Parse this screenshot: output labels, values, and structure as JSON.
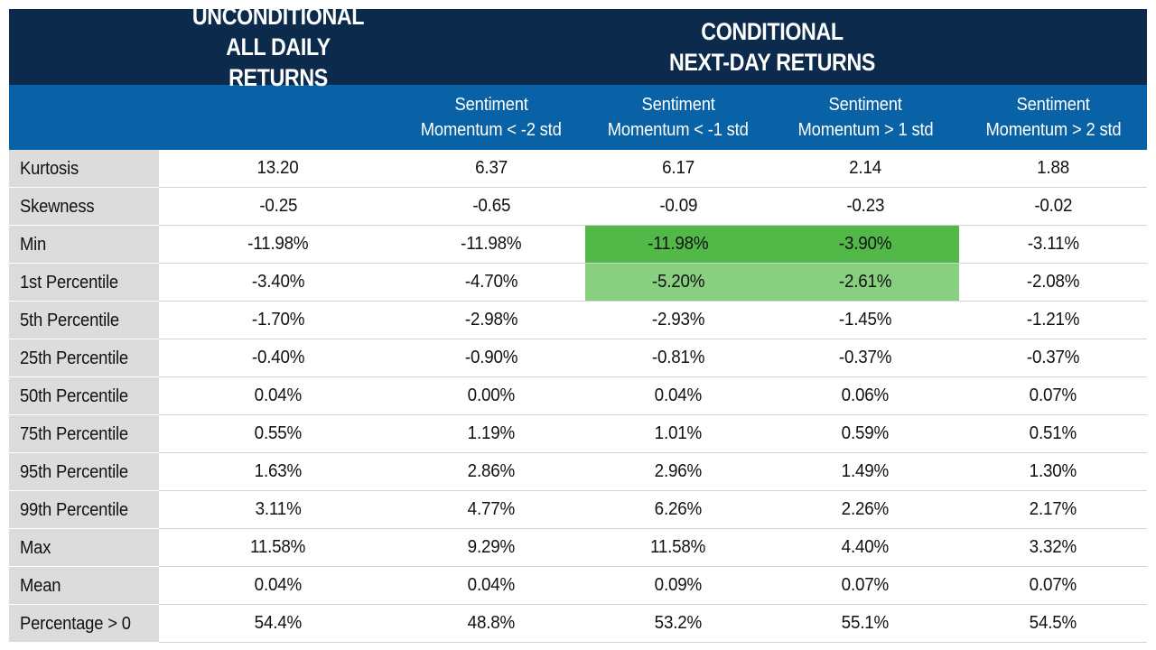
{
  "chart_data": {
    "type": "table",
    "group_headers": [
      {
        "lines": [
          "UNCONDITIONAL",
          "ALL DAILY RETURNS"
        ]
      },
      {
        "lines": [
          "CONDITIONAL",
          "NEXT-DAY RETURNS"
        ]
      }
    ],
    "columns": [
      {
        "lines": [
          "",
          ""
        ]
      },
      {
        "lines": [
          "Sentiment",
          "Momentum < -2 std"
        ]
      },
      {
        "lines": [
          "Sentiment",
          "Momentum < -1 std"
        ]
      },
      {
        "lines": [
          "Sentiment",
          "Momentum > 1 std"
        ]
      },
      {
        "lines": [
          "Sentiment",
          "Momentum > 2 std"
        ]
      }
    ],
    "rows": [
      {
        "label": "Kurtosis",
        "values": [
          "13.20",
          "6.37",
          "6.17",
          "2.14",
          "1.88"
        ]
      },
      {
        "label": "Skewness",
        "values": [
          "-0.25",
          "-0.65",
          "-0.09",
          "-0.23",
          "-0.02"
        ]
      },
      {
        "label": "Min",
        "values": [
          "-11.98%",
          "-11.98%",
          "-11.98%",
          "-3.90%",
          "-3.11%"
        ]
      },
      {
        "label": "1st Percentile",
        "values": [
          "-3.40%",
          "-4.70%",
          "-5.20%",
          "-2.61%",
          "-2.08%"
        ]
      },
      {
        "label": "5th Percentile",
        "values": [
          "-1.70%",
          "-2.98%",
          "-2.93%",
          "-1.45%",
          "-1.21%"
        ]
      },
      {
        "label": "25th Percentile",
        "values": [
          "-0.40%",
          "-0.90%",
          "-0.81%",
          "-0.37%",
          "-0.37%"
        ]
      },
      {
        "label": "50th Percentile",
        "values": [
          "0.04%",
          "0.00%",
          "0.04%",
          "0.06%",
          "0.07%"
        ]
      },
      {
        "label": "75th Percentile",
        "values": [
          "0.55%",
          "1.19%",
          "1.01%",
          "0.59%",
          "0.51%"
        ]
      },
      {
        "label": "95th Percentile",
        "values": [
          "1.63%",
          "2.86%",
          "2.96%",
          "1.49%",
          "1.30%"
        ]
      },
      {
        "label": "99th Percentile",
        "values": [
          "3.11%",
          "4.77%",
          "6.26%",
          "2.26%",
          "2.17%"
        ]
      },
      {
        "label": "Max",
        "values": [
          "11.58%",
          "9.29%",
          "11.58%",
          "4.40%",
          "3.32%"
        ]
      },
      {
        "label": "Mean",
        "values": [
          "0.04%",
          "0.04%",
          "0.09%",
          "0.07%",
          "0.07%"
        ]
      },
      {
        "label": "Percentage > 0",
        "values": [
          "54.4%",
          "48.8%",
          "53.2%",
          "55.1%",
          "54.5%"
        ]
      }
    ],
    "highlights": [
      {
        "row": 2,
        "col": 2,
        "color": "#52b848"
      },
      {
        "row": 2,
        "col": 3,
        "color": "#52b848"
      },
      {
        "row": 3,
        "col": 2,
        "color": "#88cf80"
      },
      {
        "row": 3,
        "col": 3,
        "color": "#88cf80"
      }
    ],
    "colors": {
      "header_dark": "#0b2a4c",
      "header_blue": "#0a62a6",
      "label_bg": "#dcdcdc"
    }
  }
}
